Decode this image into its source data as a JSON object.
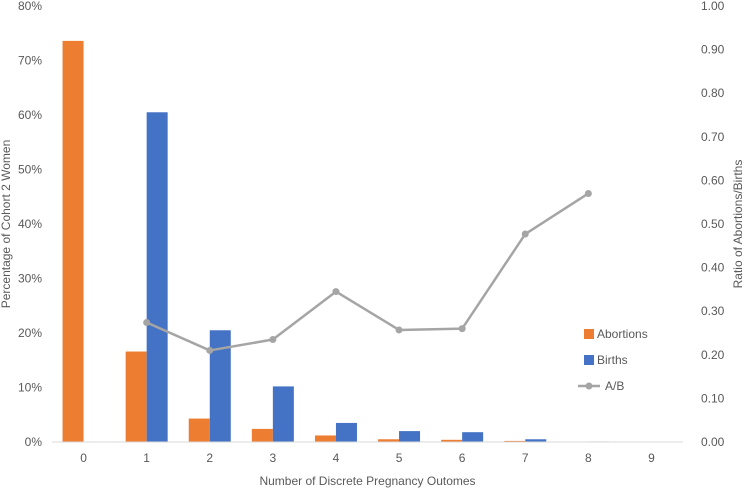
{
  "chart_data": {
    "type": "bar",
    "categories": [
      "0",
      "1",
      "2",
      "3",
      "4",
      "5",
      "6",
      "7",
      "8",
      "9"
    ],
    "series": [
      {
        "name": "Abortions",
        "type": "bar",
        "axis": "left",
        "color": "#ED7D31",
        "values": [
          73.6,
          16.6,
          4.3,
          2.4,
          1.2,
          0.5,
          0.4,
          0.2,
          0.05,
          0.03
        ]
      },
      {
        "name": "Births",
        "type": "bar",
        "axis": "left",
        "color": "#4472C4",
        "values": [
          0,
          60.5,
          20.5,
          10.2,
          3.5,
          2.0,
          1.8,
          0.5,
          0.1,
          0.02
        ]
      },
      {
        "name": "A/B",
        "type": "line",
        "axis": "right",
        "color": "#A5A5A5",
        "values": [
          null,
          0.274,
          0.21,
          0.235,
          0.345,
          0.257,
          0.26,
          0.477,
          0.57,
          null
        ]
      }
    ],
    "xlabel": "Number of Discrete Pregnancy Outomes",
    "ylabel": "Percentage of Cohort 2 Women",
    "y2label": "Ratio of Abortions/Births",
    "ylim": [
      0,
      80
    ],
    "y_ticks": [
      "0%",
      "10%",
      "20%",
      "30%",
      "40%",
      "50%",
      "60%",
      "70%",
      "80%"
    ],
    "y2lim": [
      0,
      1
    ],
    "y2_ticks": [
      "0.00",
      "0.10",
      "0.20",
      "0.30",
      "0.40",
      "0.50",
      "0.60",
      "0.70",
      "0.80",
      "0.90",
      "1.00"
    ],
    "legend_position": "right",
    "grid": false
  }
}
